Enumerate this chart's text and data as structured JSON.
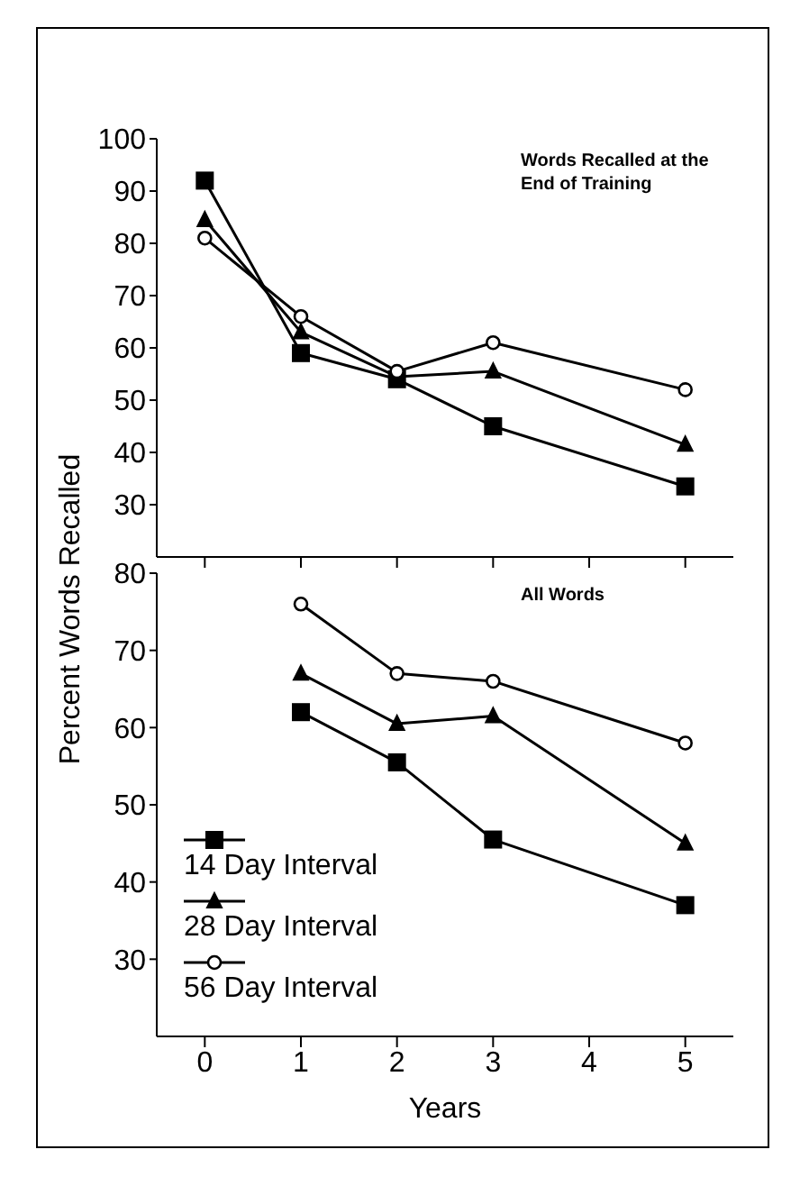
{
  "chart_data": [
    {
      "type": "line",
      "ylabel": "Percent Words Recalled",
      "annotations": [
        "Words Recalled at the End of Training"
      ],
      "x": [
        0,
        1,
        2,
        3,
        5
      ],
      "xlim": [
        -0.5,
        5.5
      ],
      "xticks": [
        0,
        1,
        2,
        3,
        4,
        5
      ],
      "ylim": [
        20,
        100
      ],
      "yticks": [
        30,
        40,
        50,
        60,
        70,
        80,
        90,
        100
      ],
      "tick_labels": "y",
      "grid": false,
      "legend": false,
      "line_style": "solid",
      "series": [
        {
          "color": "#000000",
          "marker": "square",
          "values": [
            92,
            59,
            54,
            45,
            33.5
          ]
        },
        {
          "color": "#000000",
          "marker": "triangle",
          "values": [
            84.5,
            63,
            54.5,
            55.5,
            41.5
          ]
        },
        {
          "color": "#000000",
          "marker": "circle",
          "values": [
            81,
            66,
            55.5,
            61,
            52
          ]
        }
      ]
    },
    {
      "type": "line",
      "xlabel": "Years",
      "annotations": [
        "All Words"
      ],
      "x": [
        1,
        2,
        3,
        5
      ],
      "xlim": [
        -0.5,
        5.5
      ],
      "xticks": [
        0,
        1,
        2,
        3,
        4,
        5
      ],
      "ylim": [
        20,
        80
      ],
      "yticks": [
        30,
        40,
        50,
        60,
        70,
        80
      ],
      "grid": false,
      "legend": "bottom left",
      "line_style": "solid",
      "series": [
        {
          "name": "14 Day Interval",
          "color": "#000000",
          "marker": "square",
          "values": [
            62,
            55.5,
            45.5,
            37
          ]
        },
        {
          "name": "28 Day Interval",
          "color": "#000000",
          "marker": "triangle",
          "values": [
            67,
            60.5,
            61.5,
            45
          ]
        },
        {
          "name": "56 Day Interval",
          "color": "#000000",
          "marker": "circle",
          "values": [
            76,
            67,
            66,
            58
          ]
        }
      ]
    }
  ]
}
